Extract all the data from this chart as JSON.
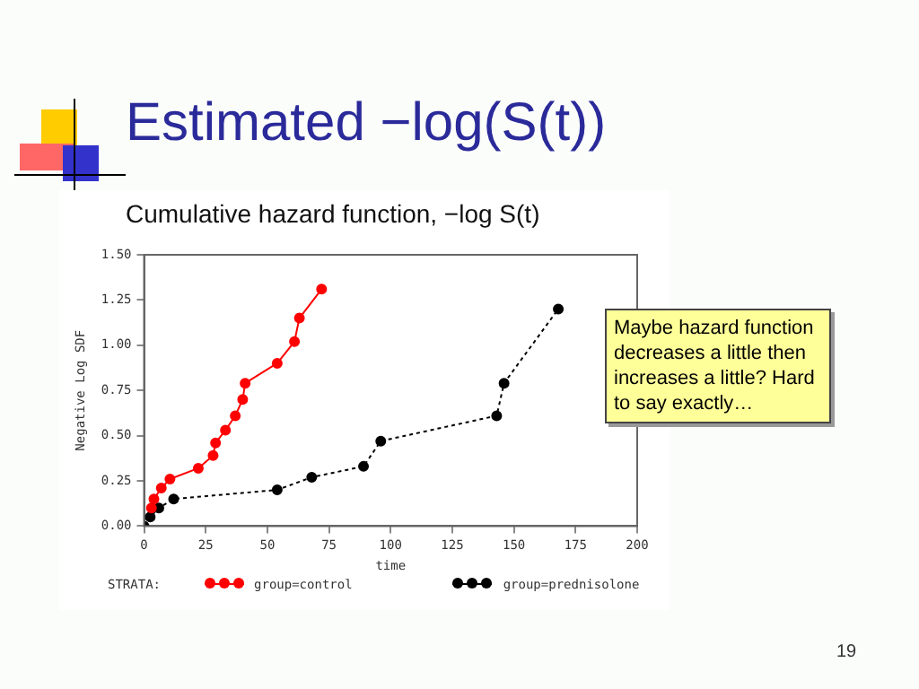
{
  "chart_data": {
    "type": "line",
    "title": "Estimated −log(S(t))",
    "subtitle": "Cumulative hazard function, −log S(t)",
    "xlabel": "time",
    "ylabel": "Negative Log SDF",
    "legend_title": "STRATA:",
    "series": [
      {
        "name": "group=control",
        "color": "#ff0000",
        "line_style": "solid",
        "x": [
          3,
          4,
          7,
          10.5,
          22,
          28,
          29,
          33,
          37,
          40,
          41,
          54,
          61,
          63,
          72
        ],
        "values": [
          0.1,
          0.15,
          0.21,
          0.26,
          0.32,
          0.39,
          0.46,
          0.53,
          0.61,
          0.7,
          0.79,
          0.9,
          1.02,
          1.15,
          1.31
        ]
      },
      {
        "name": "group=prednisolone",
        "color": "#000000",
        "line_style": "dotted",
        "x": [
          0,
          2.5,
          6,
          12,
          54,
          68,
          89,
          96,
          143,
          146,
          168
        ],
        "values": [
          0,
          0.05,
          0.1,
          0.15,
          0.2,
          0.27,
          0.33,
          0.47,
          0.61,
          0.79,
          1.2
        ]
      }
    ],
    "xlim": [
      0,
      200
    ],
    "xticks": [
      0,
      25,
      50,
      75,
      100,
      125,
      150,
      175,
      200
    ],
    "ylim": [
      0,
      1.5
    ],
    "yticks": [
      {
        "value": 0,
        "label": "0.00"
      },
      {
        "value": 0.25,
        "label": "0.25"
      },
      {
        "value": 0.5,
        "label": "0.50"
      },
      {
        "value": 0.75,
        "label": "0.75"
      },
      {
        "value": 1,
        "label": "1.00"
      },
      {
        "value": 1.25,
        "label": "1.25"
      },
      {
        "value": 1.5,
        "label": "1.50"
      }
    ],
    "grid": false,
    "legend": "bottom",
    "marker": "circle",
    "annotations": [
      "Maybe hazard function decreases a little then increases a little? Hard to say exactly…",
      "19"
    ]
  }
}
